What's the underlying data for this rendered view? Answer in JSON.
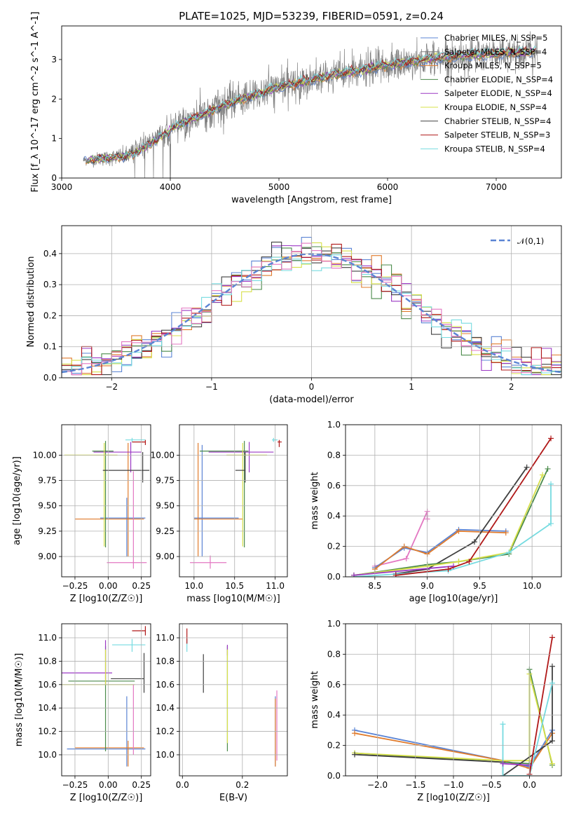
{
  "title": "PLATE=1025, MJD=53239, FIBERID=0591, z=0.24",
  "chart_data": [
    {
      "type": "line",
      "id": "spectrum",
      "title": "PLATE=1025, MJD=53239, FIBERID=0591, z=0.24",
      "xlabel": "wavelength [Angstrom, rest frame]",
      "ylabel": "Flux [f_λ 10^-17 erg cm^-2 s^-1 A^-1]",
      "xlim": [
        3000,
        7600
      ],
      "ylim": [
        0,
        3.85
      ],
      "xticks": [
        "3000",
        "4000",
        "5000",
        "6000",
        "7000"
      ],
      "yticks": [
        "0",
        "1",
        "2",
        "3"
      ],
      "grid": false,
      "legend_position": "upper right",
      "data_range": [
        3200,
        7380
      ],
      "continuum_shape": {
        "x": [
          3200,
          3600,
          4000,
          4500,
          5000,
          5500,
          6000,
          6500,
          7000,
          7380
        ],
        "y": [
          0.45,
          0.55,
          1.25,
          1.85,
          2.3,
          2.6,
          2.85,
          3.05,
          3.15,
          3.2
        ]
      },
      "series": [
        {
          "name": "Chabrier MILES, N_SSP=5",
          "color": "#5b84d4"
        },
        {
          "name": "Salpeter MILES, N_SSP=4",
          "color": "#7f7f7f"
        },
        {
          "name": "Kroupa MILES, N_SSP=5",
          "color": "#e07b2c"
        },
        {
          "name": "Chabrier ELODIE, N_SSP=4",
          "color": "#4a8a4a"
        },
        {
          "name": "Salpeter ELODIE, N_SSP=4",
          "color": "#9b38c4"
        },
        {
          "name": "Kroupa ELODIE, N_SSP=4",
          "color": "#d7e04a"
        },
        {
          "name": "Chabrier STELIB, N_SSP=4",
          "color": "#404040"
        },
        {
          "name": "Salpeter STELIB, N_SSP=3",
          "color": "#b01818"
        },
        {
          "name": "Kroupa STELIB, N_SSP=4",
          "color": "#76dbe0"
        }
      ]
    },
    {
      "type": "line",
      "id": "residual-histogram",
      "xlabel": "(data-model)/error",
      "ylabel": "Normed distribution",
      "xlim": [
        -2.5,
        2.5
      ],
      "ylim": [
        0,
        0.49
      ],
      "xticks": [
        "−2",
        "−1",
        "0",
        "1",
        "2"
      ],
      "yticks": [
        "0.0",
        "0.1",
        "0.2",
        "0.3",
        "0.4"
      ],
      "grid": true,
      "legend_position": "upper right",
      "reference_curve": {
        "name": "𝒩(0,1)",
        "mean": 0,
        "sigma": 1,
        "color": "#5b84d4"
      },
      "histogram_bins": 50,
      "series_colors": [
        "#5b84d4",
        "#e07b2c",
        "#4a8a4a",
        "#9b38c4",
        "#d7e04a",
        "#404040",
        "#b01818",
        "#76dbe0",
        "#e377c2"
      ]
    },
    {
      "type": "scatter",
      "id": "age-vs-Z",
      "xlabel": "Z [log10(Z/Z☉)]",
      "ylabel": "age  [log10(age/yr)]",
      "xlim": [
        -0.35,
        0.32
      ],
      "ylim": [
        8.8,
        10.3
      ],
      "xticks": [
        "−0.25",
        "0.00",
        "0.25"
      ],
      "yticks": [
        "9.00",
        "9.25",
        "9.50",
        "9.75",
        "10.00"
      ],
      "grid": true,
      "points": [
        {
          "x": 0.14,
          "xerr": [
            0.2,
            0.14
          ],
          "y": 9.38,
          "yerr": [
            0.38,
            0.2
          ],
          "color": "#5b84d4"
        },
        {
          "x": 0.18,
          "xerr": [
            0.05,
            0.1
          ],
          "y": 10.15,
          "yerr": [
            0.02,
            0.02
          ],
          "color": "#76dbe0"
        },
        {
          "x": 0.15,
          "xerr": [
            0.4,
            0.12
          ],
          "y": 9.37,
          "yerr": [
            0.37,
            0.75
          ],
          "color": "#e07b2c"
        },
        {
          "x": -0.02,
          "xerr": [
            0.1,
            0.06
          ],
          "y": 10.04,
          "yerr": [
            0.95,
            0.1
          ],
          "color": "#4a8a4a"
        },
        {
          "x": 0.17,
          "xerr": [
            0.28,
            0.08
          ],
          "y": 10.03,
          "yerr": [
            0.2,
            0.1
          ],
          "color": "#9b38c4"
        },
        {
          "x": -0.03,
          "xerr": [
            0.3,
            0.1
          ],
          "y": 10.0,
          "yerr": [
            0.9,
            0.12
          ],
          "color": "#d7e04a"
        },
        {
          "x": 0.26,
          "xerr": [
            0.3,
            0.05
          ],
          "y": 9.85,
          "yerr": [
            0.12,
            0.18
          ],
          "color": "#404040"
        },
        {
          "x": 0.28,
          "xerr": [
            0.1,
            0.0
          ],
          "y": 10.13,
          "yerr": [
            0.03,
            0.02
          ],
          "color": "#b01818"
        },
        {
          "x": 0.19,
          "xerr": [
            0.2,
            0.1
          ],
          "y": 8.94,
          "yerr": [
            0.06,
            0.9
          ],
          "color": "#e377c2"
        }
      ]
    },
    {
      "type": "scatter",
      "id": "age-vs-mass",
      "xlabel": "mass [log10(M/M☉)]",
      "xlim": [
        9.82,
        11.15
      ],
      "ylim": [
        8.8,
        10.3
      ],
      "xticks": [
        "10.0",
        "10.5",
        "11.0"
      ],
      "yticks": [
        "9.00",
        "9.25",
        "9.50",
        "9.75",
        "10.00"
      ],
      "grid": true,
      "points": [
        {
          "x": 10.1,
          "xerr": [
            0.1,
            0.45
          ],
          "y": 9.38,
          "yerr": [
            0.38,
            0.72
          ],
          "color": "#5b84d4"
        },
        {
          "x": 10.98,
          "xerr": [
            0.02,
            0.05
          ],
          "y": 10.15,
          "yerr": [
            0.02,
            0.02
          ],
          "color": "#76dbe0"
        },
        {
          "x": 10.05,
          "xerr": [
            0.05,
            0.55
          ],
          "y": 9.37,
          "yerr": [
            0.37,
            0.75
          ],
          "color": "#e07b2c"
        },
        {
          "x": 10.62,
          "xerr": [
            0.55,
            0.05
          ],
          "y": 10.04,
          "yerr": [
            0.95,
            0.1
          ],
          "color": "#4a8a4a"
        },
        {
          "x": 10.68,
          "xerr": [
            0.5,
            0.3
          ],
          "y": 10.03,
          "yerr": [
            0.2,
            0.1
          ],
          "color": "#9b38c4"
        },
        {
          "x": 10.6,
          "xerr": [
            0.2,
            0.3
          ],
          "y": 10.0,
          "yerr": [
            0.9,
            0.12
          ],
          "color": "#d7e04a"
        },
        {
          "x": 10.63,
          "xerr": [
            0.12,
            0.0
          ],
          "y": 9.85,
          "yerr": [
            0.12,
            0.18
          ],
          "color": "#404040"
        },
        {
          "x": 11.05,
          "xerr": [
            0.02,
            0.03
          ],
          "y": 10.13,
          "yerr": [
            0.05,
            0.02
          ],
          "color": "#b01818"
        },
        {
          "x": 10.2,
          "xerr": [
            0.25,
            0.2
          ],
          "y": 8.94,
          "yerr": [
            0.06,
            0.07
          ],
          "color": "#e377c2"
        }
      ]
    },
    {
      "type": "line",
      "id": "mass-weight-vs-age",
      "xlabel": "age  [log10(age/yr)]",
      "ylabel": "mass weight",
      "xlim": [
        8.22,
        10.28
      ],
      "ylim": [
        0,
        1.0
      ],
      "xticks": [
        "8.5",
        "9.0",
        "9.5",
        "10.0"
      ],
      "yticks": [
        "0.0",
        "0.2",
        "0.4",
        "0.6",
        "0.8",
        "1.0"
      ],
      "grid": true,
      "series": [
        {
          "color": "#e377c2",
          "x": [
            8.5,
            8.8,
            9.0,
            9.0
          ],
          "y": [
            0.07,
            0.12,
            0.43,
            0.38
          ]
        },
        {
          "color": "#5b84d4",
          "x": [
            8.5,
            8.78,
            9.0,
            9.3,
            9.75
          ],
          "y": [
            0.06,
            0.19,
            0.16,
            0.31,
            0.3
          ]
        },
        {
          "color": "#e07b2c",
          "x": [
            8.5,
            8.78,
            9.0,
            9.3,
            9.75
          ],
          "y": [
            0.05,
            0.2,
            0.15,
            0.3,
            0.29
          ]
        },
        {
          "color": "#404040",
          "x": [
            8.7,
            9.0,
            9.45,
            9.95
          ],
          "y": [
            0.02,
            0.05,
            0.23,
            0.72
          ]
        },
        {
          "color": "#4a8a4a",
          "x": [
            8.3,
            9.0,
            9.3,
            9.78,
            10.15
          ],
          "y": [
            0.01,
            0.08,
            0.1,
            0.15,
            0.71
          ]
        },
        {
          "color": "#d7e04a",
          "x": [
            8.3,
            9.0,
            9.3,
            9.78,
            10.1
          ],
          "y": [
            0.01,
            0.07,
            0.1,
            0.16,
            0.67
          ]
        },
        {
          "color": "#76dbe0",
          "x": [
            8.3,
            9.2,
            9.78,
            10.18,
            10.18
          ],
          "y": [
            0.0,
            0.04,
            0.16,
            0.35,
            0.61
          ]
        },
        {
          "color": "#9b38c4",
          "x": [
            8.3,
            9.25
          ],
          "y": [
            0.01,
            0.07
          ]
        },
        {
          "color": "#b01818",
          "x": [
            8.7,
            9.2,
            9.4,
            10.18
          ],
          "y": [
            0.01,
            0.05,
            0.1,
            0.91
          ]
        }
      ]
    },
    {
      "type": "scatter",
      "id": "mass-vs-Z",
      "xlabel": "Z [log10(Z/Z☉)]",
      "ylabel": "mass [log10(M/M☉)]",
      "xlim": [
        -0.35,
        0.32
      ],
      "ylim": [
        9.82,
        11.12
      ],
      "xticks": [
        "−0.25",
        "0.00",
        "0.25"
      ],
      "yticks": [
        "10.0",
        "10.2",
        "10.4",
        "10.6",
        "10.8",
        "11.0"
      ],
      "grid": true,
      "points": [
        {
          "x": 0.14,
          "xerr": [
            0.45,
            0.14
          ],
          "y": 10.05,
          "yerr": [
            0.15,
            0.45
          ],
          "color": "#5b84d4"
        },
        {
          "x": 0.18,
          "xerr": [
            0.15,
            0.1
          ],
          "y": 10.94,
          "yerr": [
            0.06,
            0.05
          ],
          "color": "#76dbe0"
        },
        {
          "x": 0.15,
          "xerr": [
            0.4,
            0.12
          ],
          "y": 10.06,
          "yerr": [
            0.16,
            0.06
          ],
          "color": "#e07b2c"
        },
        {
          "x": -0.02,
          "xerr": [
            0.28,
            0.22
          ],
          "y": 10.63,
          "yerr": [
            0.6,
            0.3
          ],
          "color": "#4a8a4a"
        },
        {
          "x": -0.02,
          "xerr": [
            0.33,
            0.05
          ],
          "y": 10.7,
          "yerr": [
            0.1,
            0.28
          ],
          "color": "#9b38c4"
        },
        {
          "x": -0.02,
          "xerr": [
            0.33,
            0.22
          ],
          "y": 10.6,
          "yerr": [
            0.0,
            0.3
          ],
          "color": "#d7e04a"
        },
        {
          "x": 0.27,
          "xerr": [
            0.25,
            0.0
          ],
          "y": 10.65,
          "yerr": [
            0.12,
            0.22
          ],
          "color": "#404040"
        },
        {
          "x": 0.28,
          "xerr": [
            0.1,
            0.0
          ],
          "y": 11.06,
          "yerr": [
            0.04,
            0.04
          ],
          "color": "#b01818"
        },
        {
          "x": 0.19,
          "xerr": [
            0.0,
            0.0
          ],
          "y": 10.2,
          "yerr": [
            0.2,
            0.4
          ],
          "color": "#e377c2"
        }
      ]
    },
    {
      "type": "scatter",
      "id": "mass-vs-EBV",
      "xlabel": "E(B-V)",
      "xlim": [
        -0.01,
        0.35
      ],
      "ylim": [
        9.82,
        11.12
      ],
      "xticks": [
        "0.0",
        "0.2"
      ],
      "yticks": [
        "10.0",
        "10.2",
        "10.4",
        "10.6",
        "10.8",
        "11.0"
      ],
      "grid": true,
      "points": [
        {
          "x": 0.31,
          "y": 10.05,
          "yerr": [
            0.15,
            0.45
          ],
          "color": "#5b84d4"
        },
        {
          "x": 0.015,
          "y": 10.94,
          "yerr": [
            0.06,
            0.05
          ],
          "color": "#76dbe0"
        },
        {
          "x": 0.31,
          "y": 10.06,
          "yerr": [
            0.16,
            0.42
          ],
          "color": "#e07b2c"
        },
        {
          "x": 0.15,
          "y": 10.63,
          "yerr": [
            0.6,
            0.3
          ],
          "color": "#4a8a4a"
        },
        {
          "x": 0.15,
          "y": 10.9,
          "yerr": [
            0.05,
            0.04
          ],
          "color": "#9b38c4"
        },
        {
          "x": 0.15,
          "y": 10.6,
          "yerr": [
            0.5,
            0.3
          ],
          "color": "#d7e04a"
        },
        {
          "x": 0.07,
          "y": 10.7,
          "yerr": [
            0.17,
            0.16
          ],
          "color": "#404040"
        },
        {
          "x": 0.015,
          "y": 11.0,
          "yerr": [
            0.05,
            0.08
          ],
          "color": "#b01818"
        },
        {
          "x": 0.315,
          "y": 10.25,
          "yerr": [
            0.3,
            0.3
          ],
          "color": "#e377c2"
        }
      ]
    },
    {
      "type": "line",
      "id": "mass-weight-vs-Z",
      "xlabel": "Z [log10(Z/Z☉)]",
      "ylabel": "mass weight",
      "xlim": [
        -2.42,
        0.42
      ],
      "ylim": [
        0,
        1.0
      ],
      "xticks": [
        "−2.0",
        "−1.5",
        "−1.0",
        "−0.5",
        "0.0"
      ],
      "yticks": [
        "0.0",
        "0.2",
        "0.4",
        "0.6",
        "0.8",
        "1.0"
      ],
      "grid": true,
      "series": [
        {
          "color": "#5b84d4",
          "x": [
            -2.3,
            -0.35,
            0.0,
            0.3
          ],
          "y": [
            0.3,
            0.1,
            0.06,
            0.3
          ]
        },
        {
          "color": "#e07b2c",
          "x": [
            -2.3,
            -0.35,
            0.0,
            0.3
          ],
          "y": [
            0.28,
            0.1,
            0.05,
            0.28
          ]
        },
        {
          "color": "#4a8a4a",
          "x": [
            -2.3,
            -0.35,
            0.0,
            0.0,
            0.3
          ],
          "y": [
            0.15,
            0.09,
            0.08,
            0.7,
            0.07
          ]
        },
        {
          "color": "#d7e04a",
          "x": [
            -2.3,
            -0.35,
            0.0,
            0.0,
            0.3
          ],
          "y": [
            0.15,
            0.1,
            0.1,
            0.67,
            0.08
          ]
        },
        {
          "color": "#404040",
          "x": [
            -2.3,
            -0.35,
            -0.35,
            0.3,
            0.3
          ],
          "y": [
            0.14,
            0.09,
            0.0,
            0.23,
            0.72
          ]
        },
        {
          "color": "#76dbe0",
          "x": [
            -0.35,
            -0.35,
            0.0,
            0.3
          ],
          "y": [
            0.34,
            0.0,
            0.0,
            0.61
          ]
        },
        {
          "color": "#b01818",
          "x": [
            0.0,
            0.3
          ],
          "y": [
            0.01,
            0.91
          ]
        },
        {
          "color": "#9b38c4",
          "x": [
            -0.35,
            0.0
          ],
          "y": [
            0.08,
            0.07
          ]
        }
      ]
    }
  ]
}
